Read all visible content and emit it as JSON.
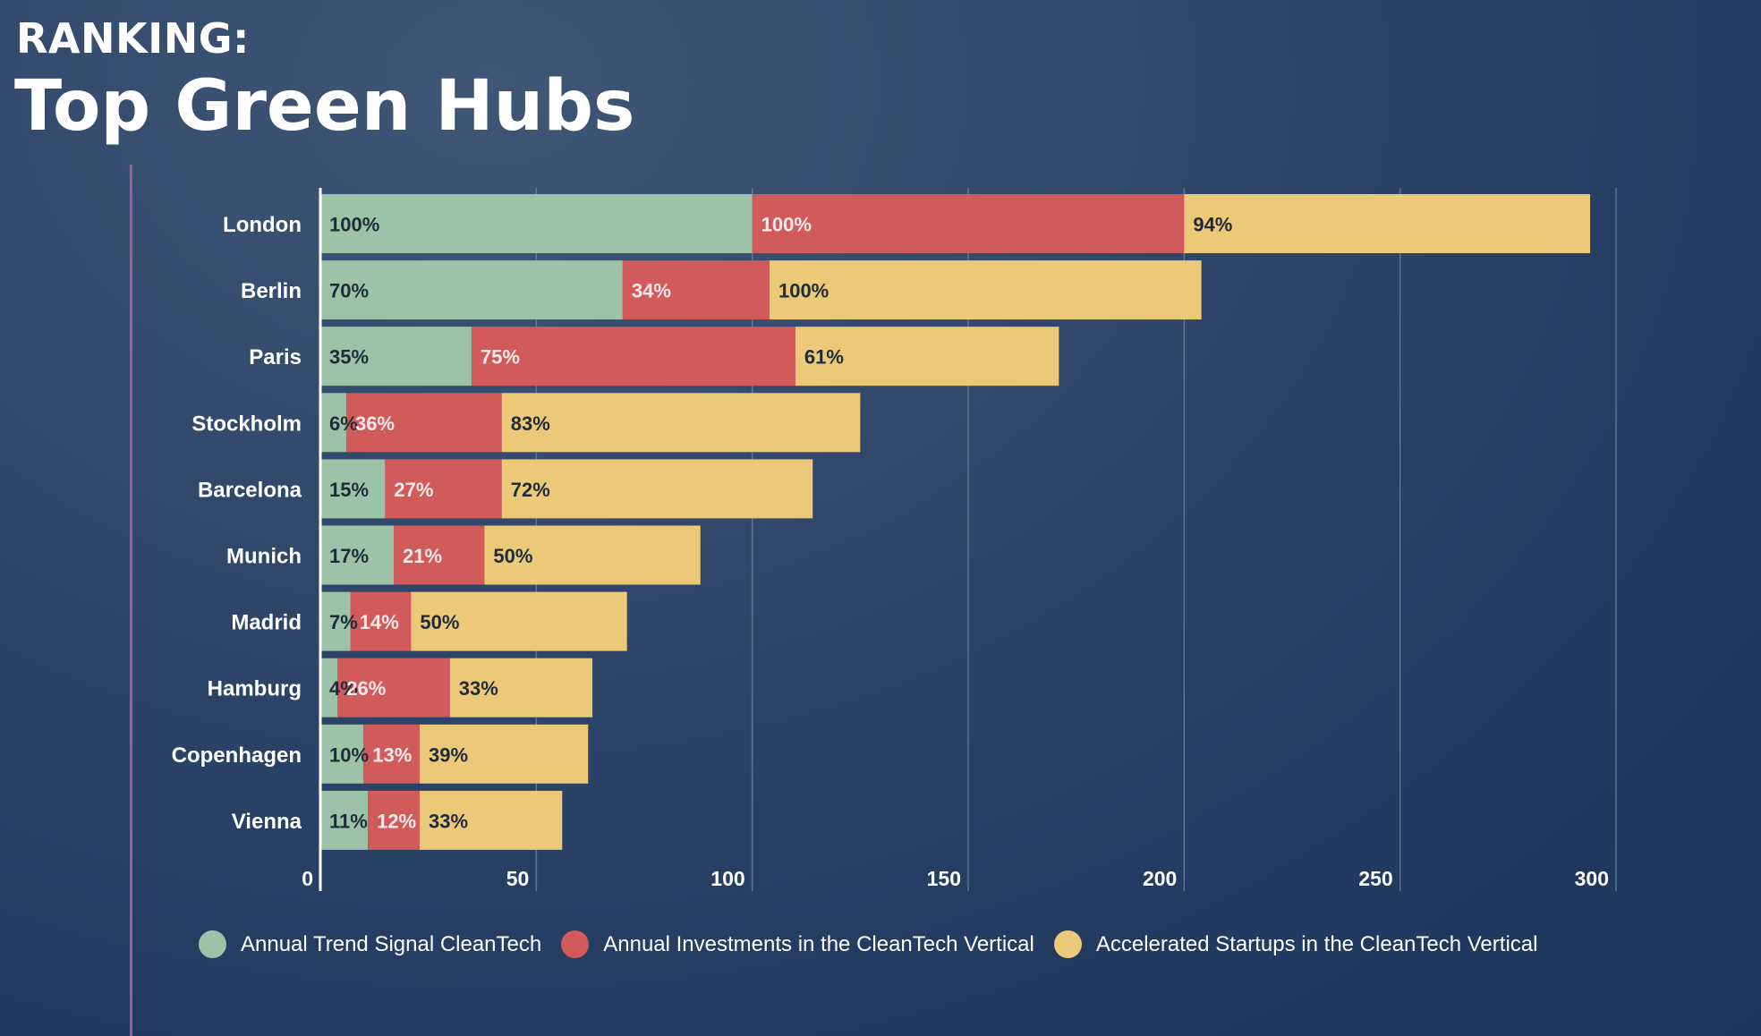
{
  "header": {
    "kicker": "RANKING:",
    "title": "Top Green Hubs"
  },
  "colors": {
    "trend": "#9cc3a7",
    "investments": "#d15b5b",
    "startups": "#ecc978",
    "grid": "#6f86a3"
  },
  "legend": {
    "position": "bottom",
    "items": [
      {
        "label": "Annual Trend Signal CleanTech",
        "color": "#9cc3a7"
      },
      {
        "label": "Annual Investments in the CleanTech Vertical",
        "color": "#d15b5b"
      },
      {
        "label": "Accelerated Startups in the CleanTech Vertical",
        "color": "#ecc978"
      }
    ]
  },
  "chart_data": {
    "type": "bar",
    "orientation": "horizontal",
    "stacked": true,
    "categories": [
      "London",
      "Berlin",
      "Paris",
      "Stockholm",
      "Barcelona",
      "Munich",
      "Madrid",
      "Hamburg",
      "Copenhagen",
      "Vienna"
    ],
    "series": [
      {
        "name": "Annual Trend Signal CleanTech",
        "values": [
          100,
          70,
          35,
          6,
          15,
          17,
          7,
          4,
          10,
          11
        ],
        "labels": [
          "100%",
          "70%",
          "35%",
          "6%",
          "15%",
          "17%",
          "7%",
          "4%",
          "10%",
          "11%"
        ]
      },
      {
        "name": "Annual Investments in the CleanTech Vertical",
        "values": [
          100,
          34,
          75,
          36,
          27,
          21,
          14,
          26,
          13,
          12
        ],
        "labels": [
          "100%",
          "34%",
          "75%",
          "36%",
          "27%",
          "21%",
          "14%",
          "26%",
          "13%",
          "12%"
        ]
      },
      {
        "name": "Accelerated Startups in the CleanTech Vertical",
        "values": [
          94,
          100,
          61,
          83,
          72,
          50,
          50,
          33,
          39,
          33
        ],
        "labels": [
          "94%",
          "100%",
          "61%",
          "83%",
          "72%",
          "50%",
          "50%",
          "33%",
          "39%",
          "33%"
        ]
      }
    ],
    "xlim": [
      0,
      300
    ],
    "xticks": [
      0,
      50,
      100,
      150,
      200,
      250,
      300
    ],
    "xtick_labels": [
      "0",
      "50",
      "100",
      "150",
      "200",
      "250",
      "300"
    ],
    "grid": true
  }
}
